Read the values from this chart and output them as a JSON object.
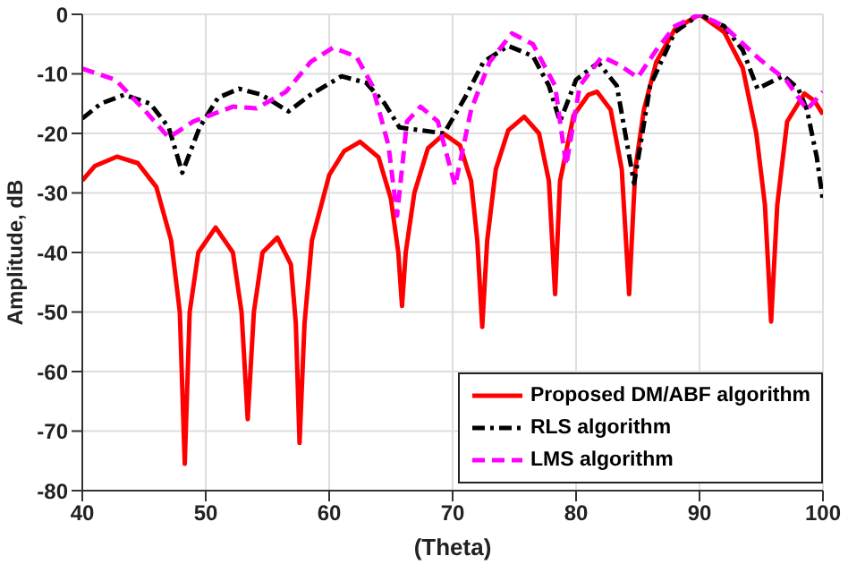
{
  "chart_data": {
    "type": "line",
    "xlabel": "(Theta)",
    "ylabel": "Amplitude, dB",
    "xlim": [
      40,
      100
    ],
    "xticks": [
      40,
      50,
      60,
      70,
      80,
      90,
      100
    ],
    "ylim": [
      -80,
      0
    ],
    "yticks": [
      -80,
      -70,
      -60,
      -50,
      -40,
      -30,
      -20,
      -10,
      0
    ],
    "grid": true,
    "legend": "bottom right",
    "marker": "none",
    "series": [
      {
        "name": "Proposed DM/ABF algorithm",
        "color": "#ff0000",
        "line_style": "solid",
        "x": [
          40,
          41,
          42.8,
          44.5,
          46,
          47.2,
          47.9,
          48.3,
          48.7,
          49.4,
          50.8,
          52.2,
          52.9,
          53.4,
          53.9,
          54.6,
          55.8,
          56.9,
          57.3,
          57.6,
          58,
          58.6,
          60,
          61.2,
          62.5,
          64,
          65,
          65.6,
          65.9,
          66.2,
          66.9,
          68,
          69.3,
          70.6,
          71.5,
          72,
          72.4,
          72.8,
          73.5,
          74.5,
          75.8,
          77,
          77.8,
          78.3,
          78.7,
          79.8,
          81,
          81.7,
          82.8,
          83.7,
          84.3,
          84.8,
          85.5,
          86.5,
          88,
          90,
          92,
          93.5,
          94.6,
          95.3,
          95.8,
          96.3,
          97.1,
          98.5,
          99.3,
          100
        ],
        "values": [
          -27.9,
          -25.5,
          -23.9,
          -25,
          -29,
          -38,
          -50,
          -75.5,
          -50,
          -40,
          -35.8,
          -40,
          -50,
          -68,
          -50,
          -40,
          -37.5,
          -42,
          -52,
          -72,
          -52,
          -38,
          -27,
          -23,
          -21.4,
          -24,
          -31,
          -40,
          -49,
          -40,
          -30,
          -22.5,
          -20.1,
          -22,
          -28,
          -38,
          -52.5,
          -38,
          -26,
          -19.5,
          -17.2,
          -20,
          -28,
          -47,
          -28,
          -17,
          -13.5,
          -13,
          -16,
          -26,
          -47,
          -26,
          -16,
          -8,
          -2.5,
          0,
          -3,
          -9,
          -20,
          -32,
          -51.6,
          -32,
          -18,
          -13.3,
          -14.5,
          -16.8
        ]
      },
      {
        "name": "RLS algorithm",
        "color": "#000000",
        "line_style": "dashdot",
        "x": [
          40,
          41.5,
          43.4,
          45.5,
          47,
          48.1,
          49.5,
          51,
          52.7,
          54.5,
          56.7,
          58.5,
          61,
          63,
          64.5,
          65.7,
          67.5,
          69.3,
          71,
          72.5,
          74.5,
          76.5,
          77.8,
          78.7,
          80,
          81.8,
          83.3,
          84.7,
          86,
          88,
          90,
          92,
          93.5,
          94.7,
          96.8,
          98,
          98.7,
          99.5,
          100
        ],
        "values": [
          -17.5,
          -15,
          -13.5,
          -15,
          -19,
          -26.6,
          -19,
          -14,
          -12.5,
          -13.5,
          -16.3,
          -13.5,
          -10.4,
          -11.5,
          -15,
          -19,
          -19.5,
          -20,
          -14,
          -8,
          -5.3,
          -7,
          -12,
          -18,
          -11,
          -8.1,
          -12,
          -28.4,
          -12,
          -3,
          0,
          -2,
          -6,
          -12.5,
          -10.3,
          -12.5,
          -16,
          -24,
          -31.3
        ]
      },
      {
        "name": "LMS algorithm",
        "color": "#ff00ff",
        "line_style": "dashed",
        "x": [
          40,
          42.7,
          45,
          47,
          49,
          52.2,
          54.1,
          56.5,
          58.5,
          60.3,
          62.2,
          63.5,
          64.8,
          65.5,
          66.3,
          67.4,
          68.8,
          70.2,
          71.5,
          73,
          74.8,
          76.5,
          78.3,
          79.2,
          80.3,
          82.1,
          83.5,
          85,
          86.5,
          88,
          90,
          92,
          94.9,
          97,
          98.7,
          100
        ],
        "values": [
          -9.1,
          -11,
          -16,
          -20.7,
          -18,
          -15.5,
          -15.8,
          -13,
          -8,
          -5.6,
          -7.1,
          -12,
          -22,
          -33.8,
          -18,
          -15.5,
          -18,
          -28.8,
          -16,
          -8,
          -3.2,
          -5,
          -12,
          -25.4,
          -12,
          -7.1,
          -8.5,
          -10.6,
          -6,
          -2,
          0,
          -2,
          -7.6,
          -11,
          -16,
          -13
        ]
      }
    ]
  }
}
